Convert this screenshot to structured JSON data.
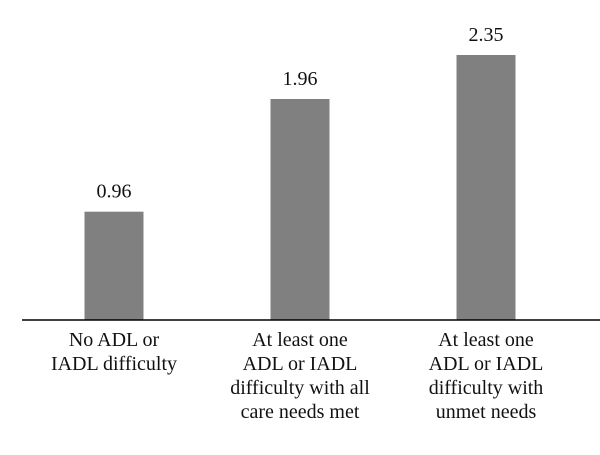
{
  "chart_data": {
    "type": "bar",
    "categories": [
      [
        "No ADL or",
        "IADL difficulty"
      ],
      [
        "At least one",
        "ADL or IADL",
        "difficulty with all",
        "care needs met"
      ],
      [
        "At least one",
        "ADL or IADL",
        "difficulty with",
        "unmet needs"
      ]
    ],
    "values": [
      0.96,
      1.96,
      2.35
    ],
    "value_labels": [
      "0.96",
      "1.96",
      "2.35"
    ],
    "title": "",
    "xlabel": "",
    "ylabel": "",
    "ylim": [
      0,
      2.35
    ],
    "grid": false,
    "legend": "none",
    "colors": {
      "bar": "#808080",
      "axis": "#000000",
      "text": "#111111"
    }
  }
}
